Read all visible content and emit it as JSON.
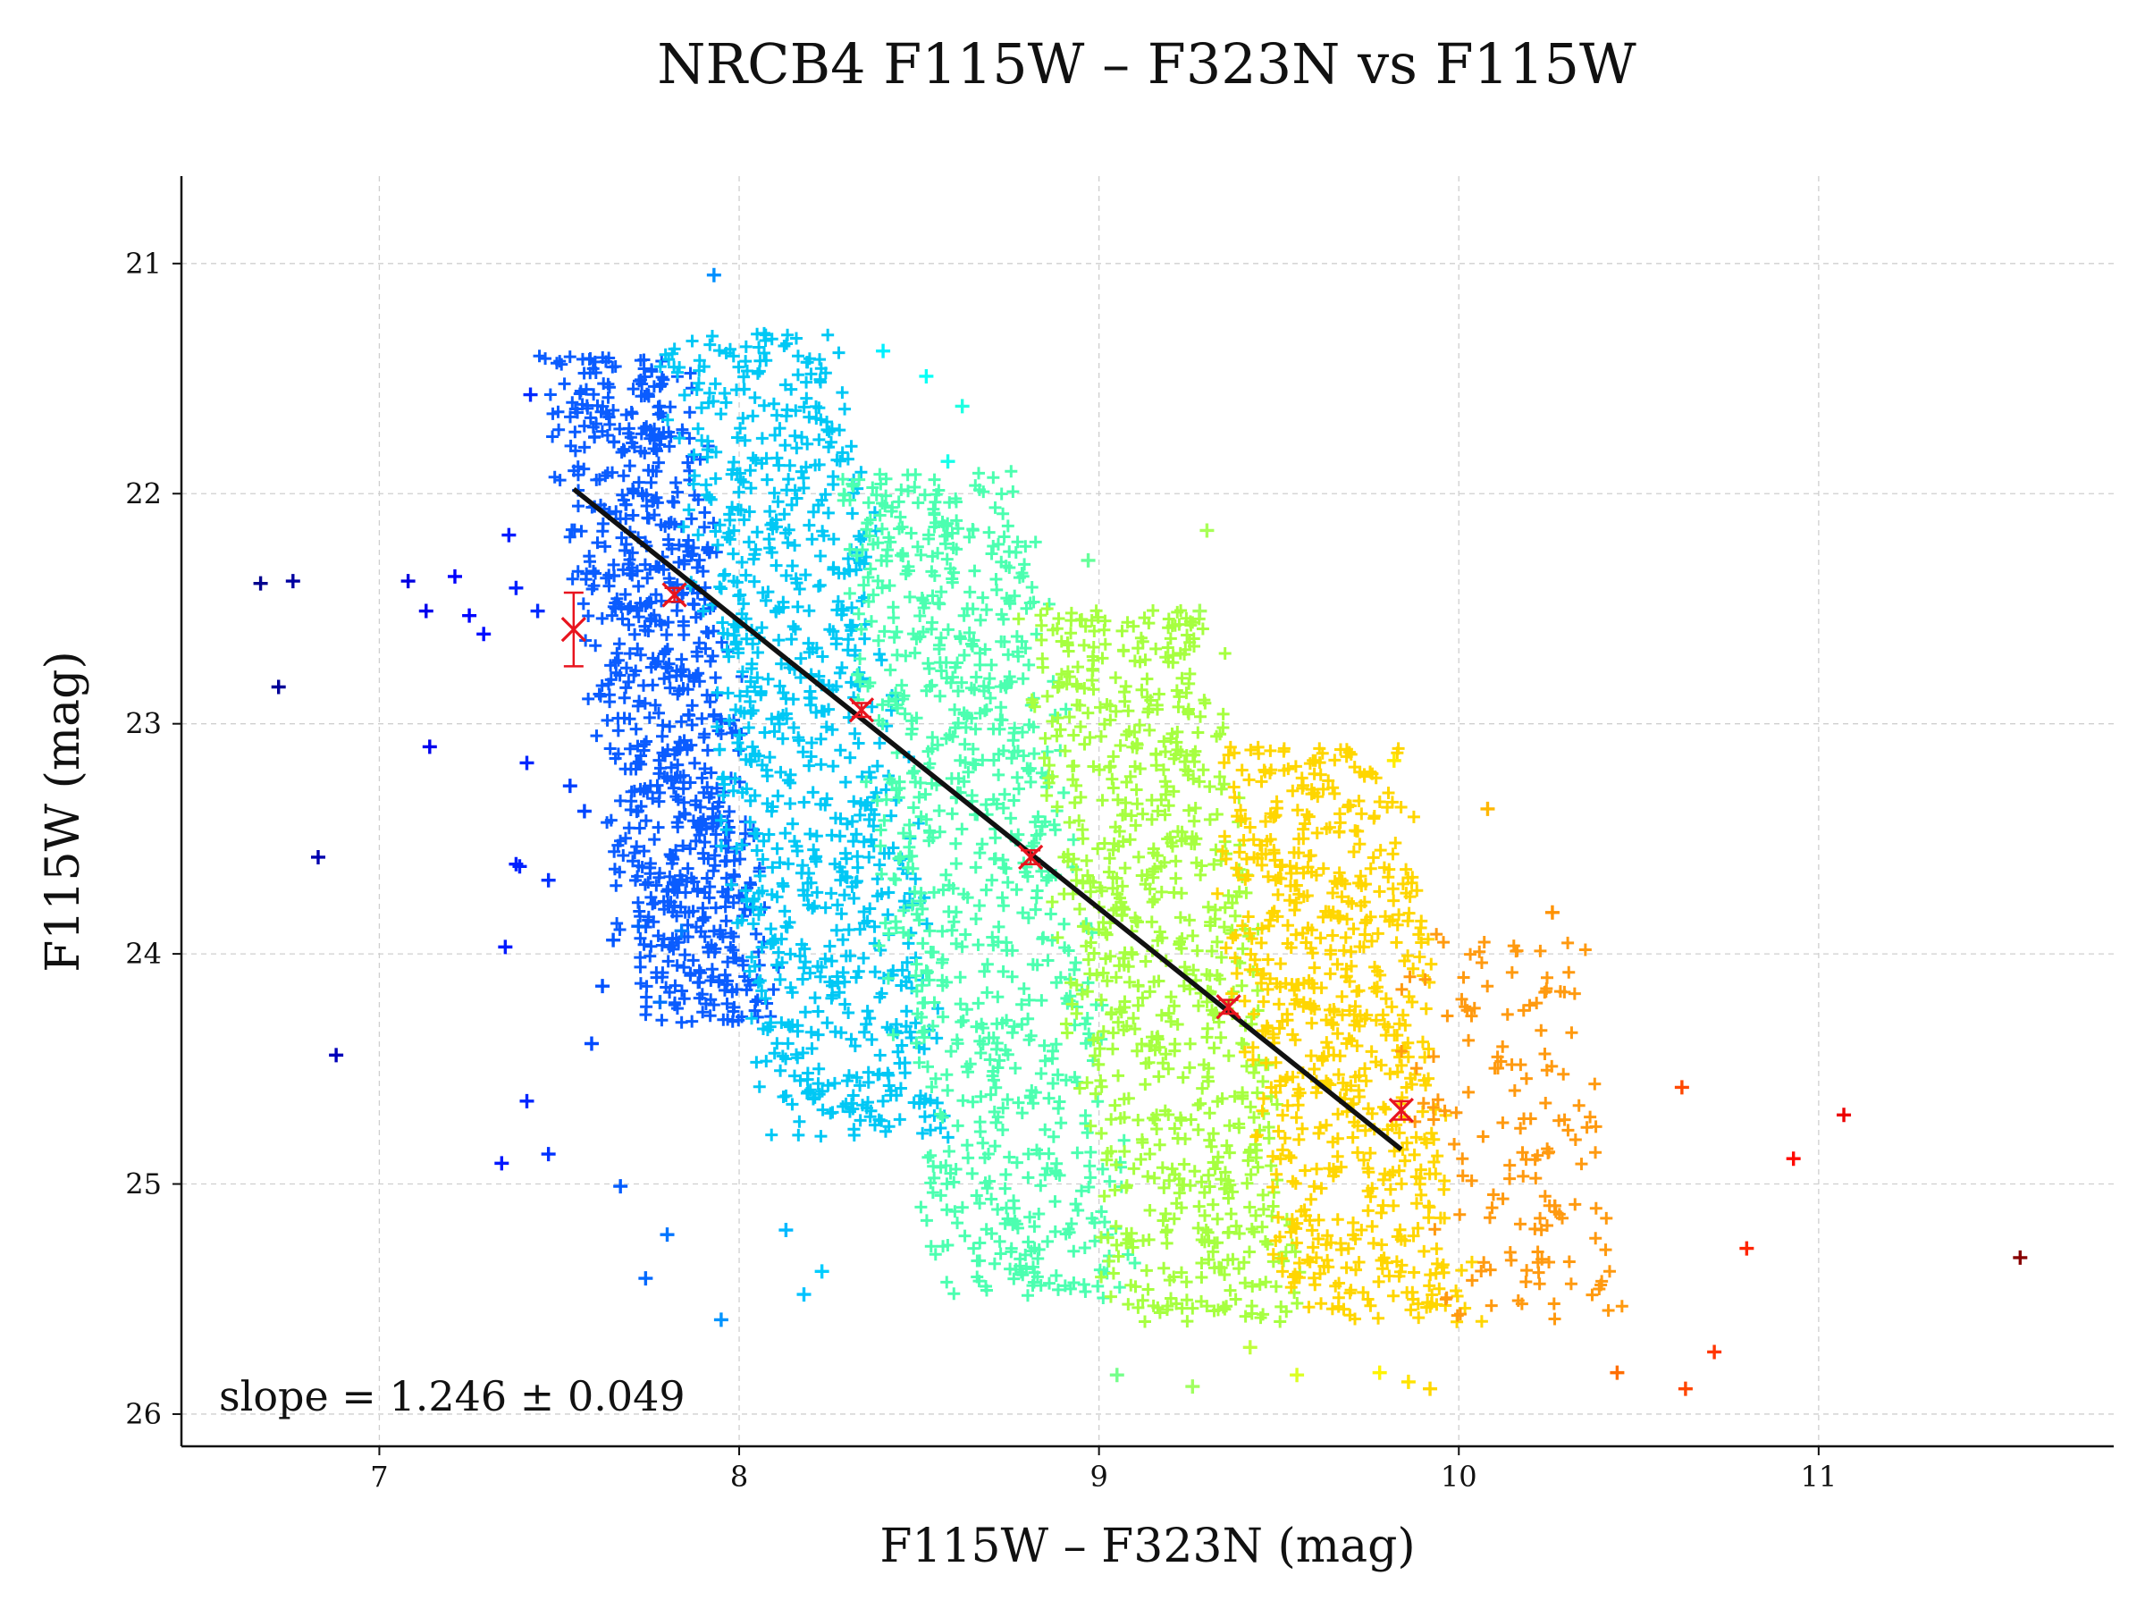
{
  "chart_data": {
    "type": "scatter",
    "title": "NRCB4 F115W – F323N vs F115W",
    "xlabel": "F115W – F323N (mag)",
    "ylabel": "F115W (mag)",
    "xlim": [
      6.45,
      11.82
    ],
    "ylim": [
      26.14,
      20.62
    ],
    "y_inverted": true,
    "grid": true,
    "x_ticks": [
      "7",
      "8",
      "9",
      "10",
      "11"
    ],
    "y_ticks": [
      "21",
      "22",
      "23",
      "24",
      "25",
      "26"
    ],
    "colormap": "jet (by color index)",
    "point_marker": "plus",
    "annotation": "slope = 1.246 ± 0.049",
    "fit_line": {
      "x": [
        7.54,
        9.84
      ],
      "y": [
        21.98,
        24.85
      ],
      "color": "#111111"
    },
    "binned_points": {
      "color": "#e8141e",
      "x": [
        7.54,
        7.82,
        8.34,
        8.81,
        9.36,
        9.84
      ],
      "y": [
        22.59,
        22.44,
        22.94,
        23.58,
        24.23,
        24.68
      ],
      "yerr": [
        0.16,
        0.03,
        0.03,
        0.03,
        0.03,
        0.04
      ]
    },
    "dense_clouds": [
      {
        "x": [
          7.62,
          7.96
        ],
        "y": [
          21.4,
          24.3
        ],
        "color": "#0a5cff",
        "n": 800
      },
      {
        "x": [
          7.95,
          8.42
        ],
        "y": [
          21.3,
          24.8
        ],
        "color": "#00c8f5",
        "n": 800
      },
      {
        "x": [
          8.42,
          8.93
        ],
        "y": [
          21.9,
          25.5
        ],
        "color": "#4cffb0",
        "n": 800
      },
      {
        "x": [
          8.93,
          9.42
        ],
        "y": [
          22.5,
          25.6
        ],
        "color": "#a6ff40",
        "n": 750
      },
      {
        "x": [
          9.42,
          9.92
        ],
        "y": [
          23.1,
          25.6
        ],
        "color": "#ffd600",
        "n": 650
      },
      {
        "x": [
          9.92,
          10.4
        ],
        "y": [
          23.9,
          25.6
        ],
        "color": "#ff9a10",
        "n": 150
      }
    ],
    "outliers": {
      "x": [
        6.67,
        6.76,
        6.72,
        6.83,
        6.88,
        7.08,
        7.13,
        7.14,
        7.35,
        7.38,
        7.39,
        7.41,
        7.42,
        7.47,
        7.34,
        7.36,
        7.21,
        7.25,
        7.29,
        7.38,
        7.44,
        7.41,
        7.47,
        7.53,
        7.67,
        7.74,
        7.8,
        7.72,
        7.59,
        7.62,
        7.57,
        7.65,
        7.84,
        7.78,
        7.95,
        7.93,
        8.13,
        8.18,
        8.23,
        8.52,
        8.58,
        8.4,
        8.62,
        9.3,
        9.26,
        9.05,
        9.42,
        9.55,
        9.78,
        9.86,
        9.92,
        10.08,
        10.26,
        10.44,
        10.63,
        10.71,
        10.62,
        10.8,
        10.93,
        11.07,
        11.56,
        9.28,
        9.82,
        8.97
      ],
      "y": [
        22.39,
        22.38,
        22.84,
        23.58,
        24.44,
        22.38,
        22.51,
        23.1,
        23.97,
        23.61,
        23.62,
        24.64,
        21.57,
        24.87,
        24.91,
        22.18,
        22.36,
        22.53,
        22.61,
        22.41,
        22.51,
        23.17,
        23.68,
        23.27,
        25.01,
        25.41,
        25.22,
        23.88,
        24.39,
        24.14,
        23.38,
        23.94,
        23.9,
        24.21,
        25.59,
        21.05,
        25.2,
        25.48,
        25.38,
        21.49,
        21.86,
        21.38,
        21.62,
        22.16,
        25.88,
        25.83,
        25.71,
        25.83,
        25.82,
        25.86,
        25.89,
        23.37,
        23.82,
        25.82,
        25.89,
        25.73,
        24.58,
        25.28,
        24.89,
        24.7,
        25.32,
        22.51,
        23.16,
        22.29
      ]
    }
  }
}
